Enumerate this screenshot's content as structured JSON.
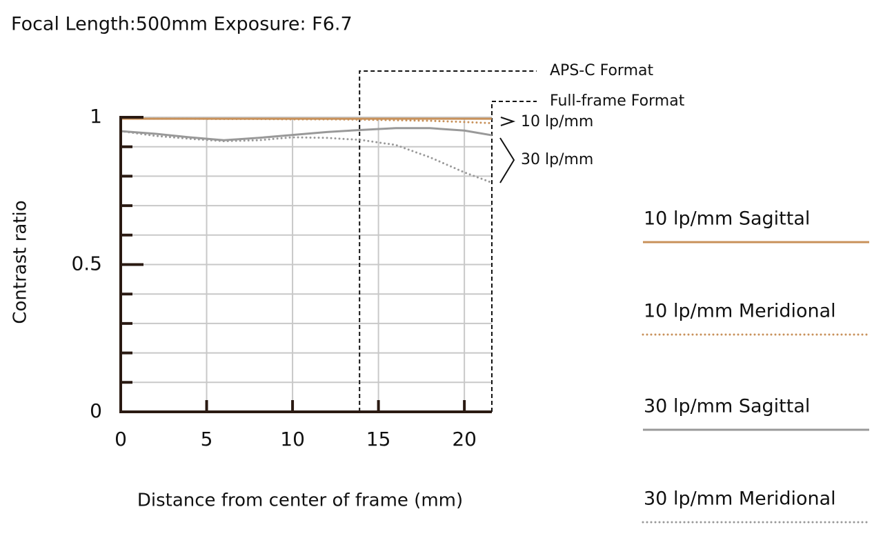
{
  "chart_data": {
    "type": "line",
    "title": "Focal Length:500mm  Exposure: F6.7",
    "x_label": "Distance from center of frame (mm)",
    "y_label": "Contrast ratio",
    "x": [
      0,
      2,
      4,
      6,
      8,
      10,
      12,
      14,
      16,
      18,
      20,
      21.6
    ],
    "series": [
      {
        "name": "10 lp/mm Sagittal",
        "color": "#c8915a",
        "style": "solid",
        "values": [
          0.995,
          0.995,
          0.995,
          0.995,
          0.995,
          0.995,
          0.995,
          0.995,
          0.995,
          0.995,
          0.995,
          0.995
        ]
      },
      {
        "name": "10 lp/mm Meridional",
        "color": "#c8915a",
        "style": "dotted",
        "values": [
          0.995,
          0.995,
          0.995,
          0.994,
          0.994,
          0.993,
          0.993,
          0.992,
          0.99,
          0.988,
          0.984,
          0.98
        ]
      },
      {
        "name": "30 lp/mm Sagittal",
        "color": "#999999",
        "style": "solid",
        "values": [
          0.953,
          0.944,
          0.932,
          0.922,
          0.93,
          0.94,
          0.95,
          0.957,
          0.963,
          0.963,
          0.955,
          0.939
        ]
      },
      {
        "name": "30 lp/mm Meridional",
        "color": "#999999",
        "style": "dotted",
        "values": [
          0.953,
          0.937,
          0.927,
          0.919,
          0.922,
          0.932,
          0.93,
          0.923,
          0.906,
          0.864,
          0.813,
          0.778
        ]
      }
    ],
    "xlim": [
      0,
      21.6
    ],
    "xticks": [
      0,
      5,
      10,
      15,
      20
    ],
    "ylim": [
      0,
      1
    ],
    "yticks": [
      0,
      0.5,
      1
    ],
    "y_minor_ticks": [
      0.1,
      0.2,
      0.3,
      0.4,
      0.6,
      0.7,
      0.8,
      0.9
    ],
    "grid": true,
    "format_lines": [
      {
        "label": "APS-C Format",
        "x": 13.9
      },
      {
        "label": "Full-frame Format",
        "x": 21.6
      }
    ],
    "annotations": [
      "10 lp/mm",
      "30 lp/mm"
    ]
  }
}
